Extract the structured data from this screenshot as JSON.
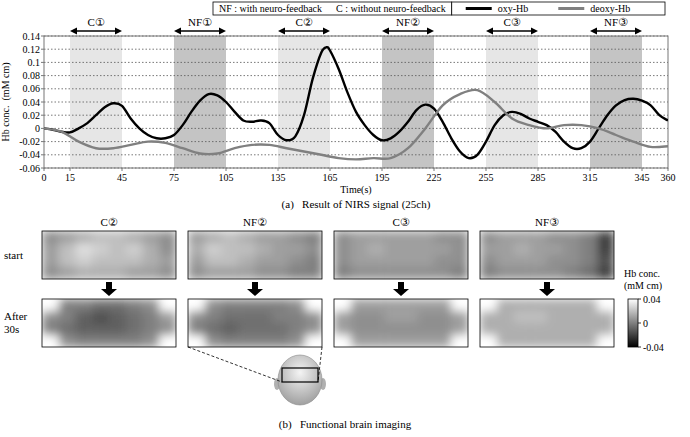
{
  "chart_data": [
    {
      "type": "line",
      "title": "(a)   Result of NIRS signal (25ch)",
      "x_label": "Time(s)",
      "y_label": "Hb conc.  (mM cm)",
      "xlim": [
        0,
        360
      ],
      "ylim": [
        -0.06,
        0.14
      ],
      "xticks": [
        0,
        15,
        45,
        75,
        105,
        135,
        165,
        195,
        225,
        255,
        285,
        315,
        345,
        360
      ],
      "yticks": [
        -0.06,
        -0.04,
        -0.02,
        0,
        0.02,
        0.04,
        0.06,
        0.08,
        0.1,
        0.12,
        0.14
      ],
      "grid": true,
      "legend": "top",
      "band_legend": [
        "NF : with neuro-feedback",
        "C : without neuro-feedback"
      ],
      "bands": [
        {
          "label": "C①",
          "start": 15,
          "end": 45,
          "color": "#e6e6e6"
        },
        {
          "label": "NF①",
          "start": 75,
          "end": 105,
          "color": "#c4c4c4"
        },
        {
          "label": "C②",
          "start": 135,
          "end": 165,
          "color": "#e6e6e6"
        },
        {
          "label": "NF②",
          "start": 195,
          "end": 225,
          "color": "#c4c4c4"
        },
        {
          "label": "C③",
          "start": 255,
          "end": 285,
          "color": "#e6e6e6"
        },
        {
          "label": "NF③",
          "start": 315,
          "end": 345,
          "color": "#c4c4c4"
        }
      ],
      "series": [
        {
          "name": "oxy-Hb",
          "color": "#000000",
          "x": [
            0,
            5,
            10,
            15,
            20,
            25,
            30,
            35,
            40,
            45,
            50,
            55,
            60,
            65,
            70,
            75,
            80,
            85,
            90,
            95,
            100,
            105,
            110,
            115,
            120,
            125,
            130,
            135,
            140,
            145,
            150,
            155,
            160,
            163,
            165,
            170,
            175,
            180,
            185,
            190,
            195,
            200,
            205,
            210,
            215,
            220,
            225,
            230,
            235,
            240,
            245,
            250,
            255,
            260,
            265,
            270,
            275,
            280,
            285,
            290,
            295,
            300,
            305,
            310,
            315,
            320,
            325,
            330,
            335,
            340,
            345,
            350,
            355,
            360
          ],
          "values": [
            0,
            -0.002,
            -0.005,
            -0.006,
            0,
            0.008,
            0.02,
            0.032,
            0.038,
            0.034,
            0.015,
            0,
            -0.01,
            -0.015,
            -0.015,
            -0.01,
            0.005,
            0.025,
            0.042,
            0.052,
            0.05,
            0.04,
            0.025,
            0.012,
            0.01,
            0.012,
            0.008,
            -0.01,
            -0.018,
            -0.012,
            0.02,
            0.075,
            0.115,
            0.123,
            0.118,
            0.09,
            0.055,
            0.025,
            0.005,
            -0.01,
            -0.018,
            -0.015,
            -0.005,
            0.01,
            0.028,
            0.036,
            0.03,
            0.01,
            -0.015,
            -0.035,
            -0.045,
            -0.04,
            -0.02,
            0.005,
            0.02,
            0.025,
            0.022,
            0.015,
            0.01,
            0.005,
            -0.005,
            -0.02,
            -0.03,
            -0.03,
            -0.02,
            0,
            0.02,
            0.035,
            0.043,
            0.045,
            0.042,
            0.035,
            0.02,
            0.012
          ]
        },
        {
          "name": "deoxy-Hb",
          "color": "#808080",
          "x": [
            0,
            10,
            20,
            30,
            40,
            50,
            60,
            70,
            80,
            90,
            100,
            110,
            120,
            130,
            140,
            150,
            160,
            170,
            180,
            190,
            200,
            210,
            220,
            230,
            240,
            250,
            260,
            270,
            280,
            290,
            300,
            310,
            320,
            330,
            340,
            350,
            360
          ],
          "values": [
            0,
            -0.005,
            -0.02,
            -0.03,
            -0.03,
            -0.025,
            -0.02,
            -0.022,
            -0.03,
            -0.038,
            -0.038,
            -0.03,
            -0.025,
            -0.025,
            -0.03,
            -0.035,
            -0.04,
            -0.045,
            -0.047,
            -0.045,
            -0.045,
            -0.03,
            0,
            0.035,
            0.052,
            0.058,
            0.04,
            0.015,
            0.005,
            0,
            0.005,
            0.005,
            0,
            -0.01,
            -0.02,
            -0.028,
            -0.027
          ]
        }
      ]
    },
    {
      "type": "heatmap",
      "title": "(b)   Functional brain imaging",
      "rows": [
        "start",
        "After 30s"
      ],
      "color_label": [
        "Hb conc.",
        "(mM cm)"
      ],
      "color_range": [
        -0.04,
        0.04
      ],
      "color_ticks": [
        0.04,
        0,
        -0.04
      ],
      "maps": [
        {
          "label": "C②",
          "start": [
            [
              0.005,
              0.01,
              0.015,
              0.02,
              0.02,
              0.015,
              0.01,
              0.005
            ],
            [
              0.01,
              0.02,
              0.03,
              0.025,
              0.02,
              0.025,
              0.015,
              0.005
            ],
            [
              0.01,
              0.02,
              0.025,
              0.02,
              0.02,
              0.02,
              0.015,
              0.01
            ],
            [
              0.005,
              0.01,
              0.015,
              0.015,
              0.015,
              0.01,
              0.01,
              0.005
            ]
          ],
          "after": [
            [
              0.04,
              0,
              0,
              -0.005,
              -0.005,
              0,
              0.005,
              0.04
            ],
            [
              0.005,
              0,
              -0.01,
              -0.015,
              -0.01,
              -0.005,
              0,
              0.01
            ],
            [
              0,
              -0.005,
              -0.01,
              -0.01,
              -0.01,
              -0.005,
              0,
              0.005
            ],
            [
              0.04,
              0.005,
              0,
              0,
              0,
              0,
              0.005,
              0.04
            ]
          ]
        },
        {
          "label": "NF②",
          "start": [
            [
              0.01,
              0.015,
              0.02,
              0.015,
              0.01,
              0.01,
              0.005,
              0
            ],
            [
              0.015,
              0.025,
              0.02,
              0.02,
              0.015,
              0.01,
              0.01,
              0.005
            ],
            [
              0.01,
              0.02,
              0.02,
              0.015,
              0.01,
              0.01,
              0.005,
              0
            ],
            [
              0.005,
              0.01,
              0.01,
              0.01,
              0.005,
              0.005,
              0,
              0
            ]
          ],
          "after": [
            [
              0.04,
              0.005,
              0,
              0,
              0,
              0,
              0.005,
              0.04
            ],
            [
              0.005,
              0,
              -0.005,
              -0.005,
              -0.005,
              0,
              0,
              0.005
            ],
            [
              0,
              -0.005,
              -0.01,
              -0.005,
              -0.005,
              -0.005,
              0,
              0.005
            ],
            [
              0.04,
              0.005,
              0,
              0,
              0,
              0,
              0.005,
              0.04
            ]
          ]
        },
        {
          "label": "C③",
          "start": [
            [
              0.005,
              0.01,
              0.01,
              0.01,
              0.01,
              0.01,
              0.005,
              0.005
            ],
            [
              0.005,
              0.01,
              0.015,
              0.01,
              0.01,
              0.01,
              0.01,
              0.005
            ],
            [
              0.005,
              0.01,
              0.01,
              0.01,
              0.01,
              0.01,
              0.005,
              0.005
            ],
            [
              0,
              0.005,
              0.005,
              0.005,
              0.005,
              0.005,
              0.005,
              0
            ]
          ],
          "after": [
            [
              0.04,
              0.01,
              0.01,
              0.01,
              0.01,
              0.01,
              0.01,
              0.04
            ],
            [
              0.01,
              0.005,
              0.005,
              0.01,
              0.01,
              0.005,
              0.005,
              0.01
            ],
            [
              0.01,
              0.005,
              0.005,
              0.005,
              0.005,
              0.005,
              0.005,
              0.01
            ],
            [
              0.04,
              0.01,
              0.01,
              0.01,
              0.01,
              0.01,
              0.01,
              0.04
            ]
          ]
        },
        {
          "label": "NF③",
          "start": [
            [
              0.005,
              0.01,
              0.01,
              0.01,
              0.005,
              0.005,
              0,
              -0.02
            ],
            [
              0.01,
              0.01,
              0.015,
              0.01,
              0.01,
              0.005,
              0,
              -0.02
            ],
            [
              0.005,
              0.01,
              0.01,
              0.01,
              0.005,
              0.005,
              0,
              -0.015
            ],
            [
              0,
              0.005,
              0.005,
              0.005,
              0.005,
              0,
              -0.005,
              -0.02
            ]
          ],
          "after": [
            [
              0.04,
              0.015,
              0.015,
              0.015,
              0.015,
              0.015,
              0.015,
              0.04
            ],
            [
              0.015,
              0.015,
              0.02,
              0.02,
              0.015,
              0.015,
              0.015,
              0.015
            ],
            [
              0.015,
              0.015,
              0.015,
              0.015,
              0.015,
              0.015,
              0.015,
              0.015
            ],
            [
              0.04,
              0.015,
              0.015,
              0.015,
              0.015,
              0.015,
              0.015,
              0.04
            ]
          ]
        }
      ]
    }
  ]
}
